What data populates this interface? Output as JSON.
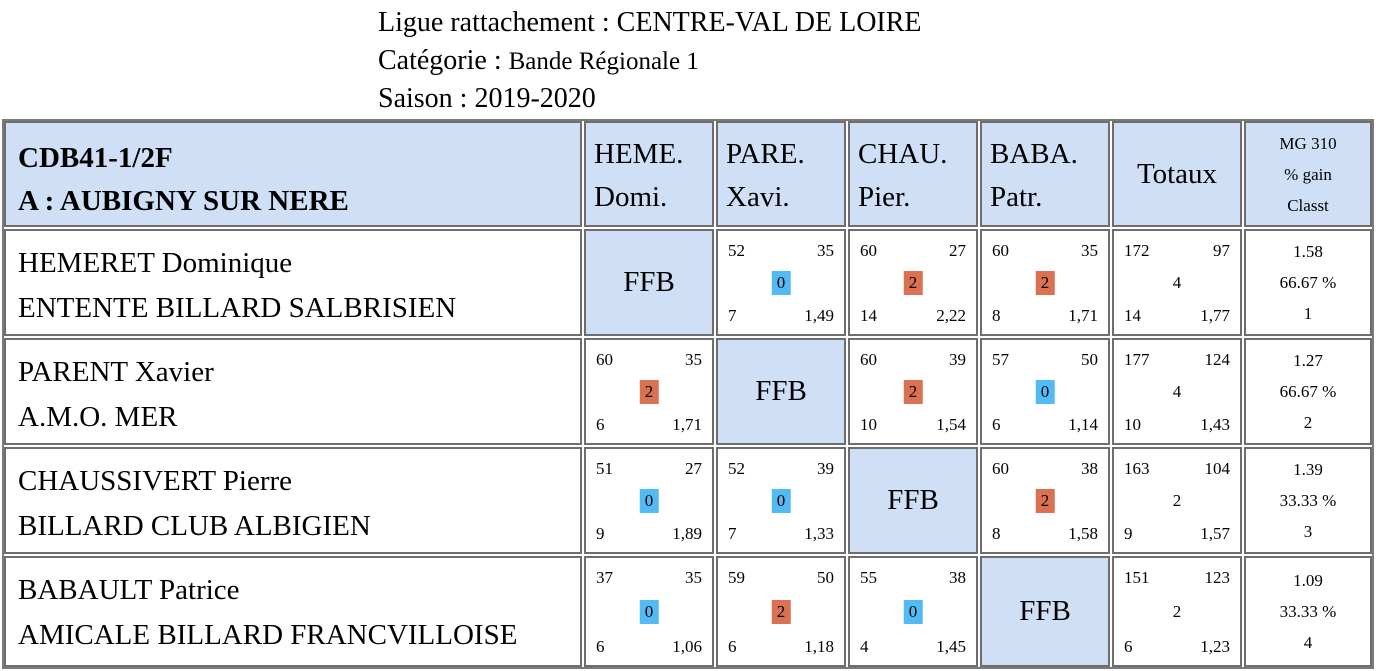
{
  "header": {
    "ligue": "Ligue rattachement : CENTRE-VAL DE LOIRE",
    "categorie_label": "Catégorie : ",
    "categorie_value": "Bande Régionale 1",
    "saison": "Saison : 2019-2020"
  },
  "table": {
    "corner": {
      "line1": "CDB41-1/2F",
      "line2": "A : AUBIGNY SUR NERE"
    },
    "columns": [
      {
        "line1": "HEME.",
        "line2": "Domi."
      },
      {
        "line1": "PARE.",
        "line2": "Xavi."
      },
      {
        "line1": "CHAU.",
        "line2": "Pier."
      },
      {
        "line1": "BABA.",
        "line2": "Patr."
      }
    ],
    "totals_label": "Totaux",
    "mg_head": {
      "line1": "MG 310",
      "line2": "% gain",
      "line3": "Classt"
    },
    "ffb_label": "FFB",
    "rows": [
      {
        "name": "HEMERET Dominique",
        "club": "ENTENTE BILLARD SALBRISIEN",
        "results": [
          null,
          {
            "tl": "52",
            "tr": "35",
            "pts": "0",
            "bl": "7",
            "br": "1,49"
          },
          {
            "tl": "60",
            "tr": "27",
            "pts": "2",
            "bl": "14",
            "br": "2,22"
          },
          {
            "tl": "60",
            "tr": "35",
            "pts": "2",
            "bl": "8",
            "br": "1,71"
          }
        ],
        "totals": {
          "tl": "172",
          "tr": "97",
          "mid": "4",
          "bl": "14",
          "br": "1,77"
        },
        "mg": {
          "avg": "1.58",
          "pct": "66.67 %",
          "rank": "1"
        }
      },
      {
        "name": "PARENT Xavier",
        "club": "A.M.O. MER",
        "results": [
          {
            "tl": "60",
            "tr": "35",
            "pts": "2",
            "bl": "6",
            "br": "1,71"
          },
          null,
          {
            "tl": "60",
            "tr": "39",
            "pts": "2",
            "bl": "10",
            "br": "1,54"
          },
          {
            "tl": "57",
            "tr": "50",
            "pts": "0",
            "bl": "6",
            "br": "1,14"
          }
        ],
        "totals": {
          "tl": "177",
          "tr": "124",
          "mid": "4",
          "bl": "10",
          "br": "1,43"
        },
        "mg": {
          "avg": "1.27",
          "pct": "66.67 %",
          "rank": "2"
        }
      },
      {
        "name": "CHAUSSIVERT Pierre",
        "club": "BILLARD CLUB ALBIGIEN",
        "results": [
          {
            "tl": "51",
            "tr": "27",
            "pts": "0",
            "bl": "9",
            "br": "1,89"
          },
          {
            "tl": "52",
            "tr": "39",
            "pts": "0",
            "bl": "7",
            "br": "1,33"
          },
          null,
          {
            "tl": "60",
            "tr": "38",
            "pts": "2",
            "bl": "8",
            "br": "1,58"
          }
        ],
        "totals": {
          "tl": "163",
          "tr": "104",
          "mid": "2",
          "bl": "9",
          "br": "1,57"
        },
        "mg": {
          "avg": "1.39",
          "pct": "33.33 %",
          "rank": "3"
        }
      },
      {
        "name": "BABAULT Patrice",
        "club": "AMICALE BILLARD FRANCVILLOISE",
        "results": [
          {
            "tl": "37",
            "tr": "35",
            "pts": "0",
            "bl": "6",
            "br": "1,06"
          },
          {
            "tl": "59",
            "tr": "50",
            "pts": "2",
            "bl": "6",
            "br": "1,18"
          },
          {
            "tl": "55",
            "tr": "38",
            "pts": "0",
            "bl": "4",
            "br": "1,45"
          },
          null
        ],
        "totals": {
          "tl": "151",
          "tr": "123",
          "mid": "2",
          "bl": "6",
          "br": "1,23"
        },
        "mg": {
          "avg": "1.09",
          "pct": "33.33 %",
          "rank": "4"
        }
      }
    ]
  },
  "colors": {
    "header_blue": "#cfe0f6",
    "win_badge": "#d97152",
    "loss_badge": "#54baf4",
    "border": "#6e6e6e"
  }
}
